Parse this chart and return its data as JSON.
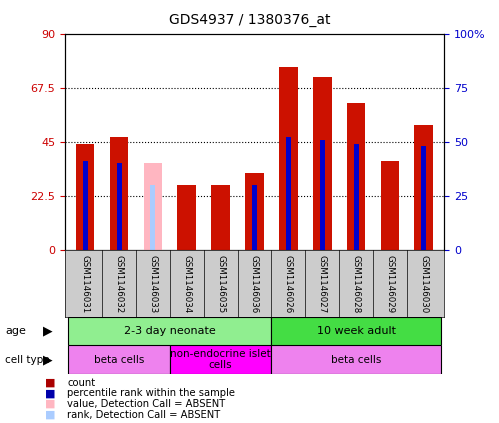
{
  "title": "GDS4937 / 1380376_at",
  "samples": [
    "GSM1146031",
    "GSM1146032",
    "GSM1146033",
    "GSM1146034",
    "GSM1146035",
    "GSM1146036",
    "GSM1146026",
    "GSM1146027",
    "GSM1146028",
    "GSM1146029",
    "GSM1146030"
  ],
  "red_values": [
    44,
    47,
    0,
    27,
    27,
    32,
    76,
    72,
    61,
    37,
    52
  ],
  "blue_values": [
    41,
    40,
    0,
    0,
    0,
    30,
    52,
    51,
    49,
    0,
    48
  ],
  "pink_values": [
    0,
    0,
    36,
    0,
    0,
    0,
    0,
    0,
    0,
    0,
    0
  ],
  "lightblue_values": [
    0,
    0,
    30,
    0,
    0,
    0,
    0,
    0,
    0,
    0,
    0
  ],
  "absent_mask": [
    false,
    false,
    true,
    false,
    false,
    false,
    false,
    false,
    false,
    false,
    false
  ],
  "ylim_left": [
    0,
    90
  ],
  "ylim_right": [
    0,
    100
  ],
  "yticks_left": [
    0,
    22.5,
    45,
    67.5,
    90
  ],
  "yticks_right": [
    0,
    25,
    50,
    75,
    100
  ],
  "ytick_labels_left": [
    "0",
    "22.5",
    "45",
    "67.5",
    "90"
  ],
  "ytick_labels_right": [
    "0",
    "25",
    "50",
    "75",
    "100%"
  ],
  "age_groups": [
    {
      "label": "2-3 day neonate",
      "start": 0,
      "end": 6,
      "color": "#90EE90"
    },
    {
      "label": "10 week adult",
      "start": 6,
      "end": 11,
      "color": "#44DD44"
    }
  ],
  "cell_groups": [
    {
      "label": "beta cells",
      "start": 0,
      "end": 3,
      "color": "#EE82EE"
    },
    {
      "label": "non-endocrine islet\ncells",
      "start": 3,
      "end": 6,
      "color": "#FF00FF"
    },
    {
      "label": "beta cells",
      "start": 6,
      "end": 11,
      "color": "#EE82EE"
    }
  ],
  "legend_items": [
    {
      "color": "#AA0000",
      "label": "count"
    },
    {
      "color": "#0000AA",
      "label": "percentile rank within the sample"
    },
    {
      "color": "#FFB6C1",
      "label": "value, Detection Call = ABSENT"
    },
    {
      "color": "#AACCFF",
      "label": "rank, Detection Call = ABSENT"
    }
  ],
  "red_bar_width": 0.55,
  "blue_bar_width": 0.15,
  "red_color": "#CC1100",
  "blue_color": "#0000CC",
  "pink_color": "#FFB6C1",
  "lightblue_color": "#AACCFF",
  "bg_color": "#FFFFFF",
  "tick_label_color_left": "#CC0000",
  "tick_label_color_right": "#0000CC",
  "label_bg_color": "#CCCCCC"
}
